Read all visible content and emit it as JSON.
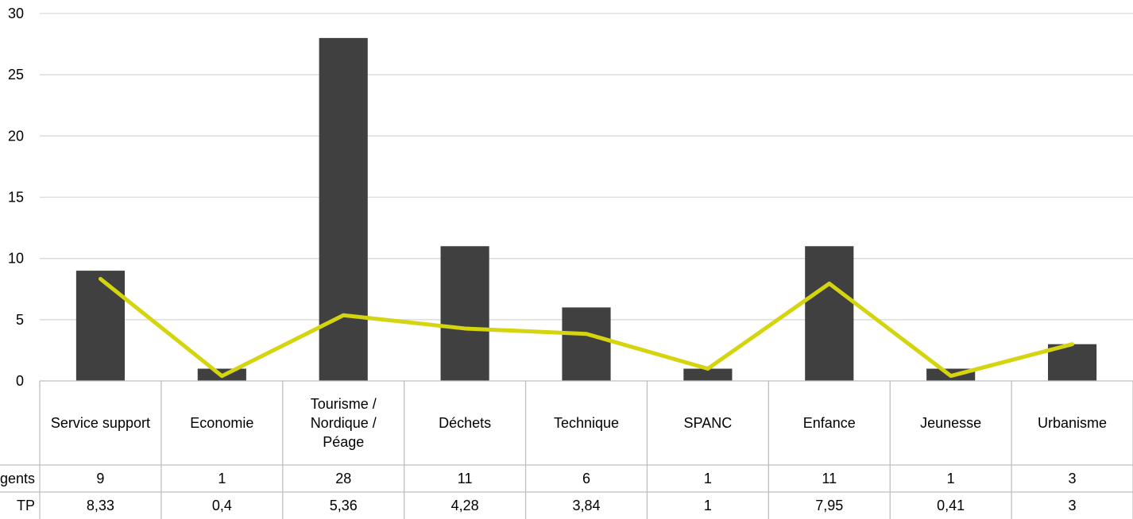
{
  "chart_data": {
    "type": "bar",
    "title": "",
    "categories": [
      [
        "Service support"
      ],
      [
        "Economie"
      ],
      [
        "Tourisme /",
        "Nordique /",
        "Péage"
      ],
      [
        "Déchets"
      ],
      [
        "Technique"
      ],
      [
        "SPANC"
      ],
      [
        "Enfance"
      ],
      [
        "Jeunesse"
      ],
      [
        "Urbanisme"
      ]
    ],
    "series": [
      {
        "name": "Agents",
        "kind": "bar",
        "color": "#404040",
        "values": [
          9,
          1,
          28,
          11,
          6,
          1,
          11,
          1,
          3
        ],
        "labels": [
          "9",
          "1",
          "28",
          "11",
          "6",
          "1",
          "11",
          "1",
          "3"
        ]
      },
      {
        "name": "TP",
        "kind": "line",
        "color": "#d4d40f",
        "values": [
          8.33,
          0.4,
          5.36,
          4.28,
          3.84,
          1,
          7.95,
          0.41,
          3
        ],
        "labels": [
          "8,33",
          "0,4",
          "5,36",
          "4,28",
          "3,84",
          "1",
          "7,95",
          "0,41",
          "3"
        ]
      }
    ],
    "ylim": [
      0,
      30
    ],
    "yticks": [
      0,
      5,
      10,
      15,
      20,
      25,
      30
    ],
    "grid": true,
    "legend": "data table below chart"
  }
}
